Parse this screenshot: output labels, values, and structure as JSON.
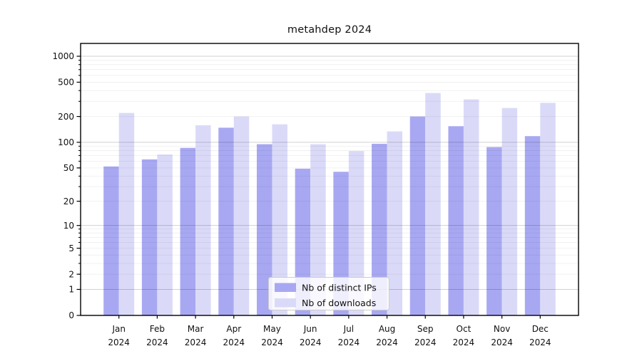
{
  "title": "metahdep 2024",
  "chart_data": {
    "type": "bar",
    "title": "metahdep 2024",
    "categories": [
      "Jan 2024",
      "Feb 2024",
      "Mar 2024",
      "Apr 2024",
      "May 2024",
      "Jun 2024",
      "Jul 2024",
      "Aug 2024",
      "Sep 2024",
      "Oct 2024",
      "Nov 2024",
      "Dec 2024"
    ],
    "series": [
      {
        "name": "Nb of distinct IPs",
        "color": "#a8a8f2",
        "values": [
          52,
          63,
          86,
          148,
          95,
          49,
          45,
          96,
          200,
          154,
          88,
          118
        ]
      },
      {
        "name": "Nb of downloads",
        "color": "#dadaf8",
        "values": [
          220,
          72,
          158,
          200,
          162,
          95,
          79,
          134,
          375,
          316,
          251,
          288
        ]
      }
    ],
    "yscale": "log10(1+x)",
    "yticks": [
      0,
      1,
      2,
      5,
      10,
      20,
      50,
      100,
      200,
      500,
      1000
    ],
    "ylim": [
      0,
      1400
    ],
    "xlabel": "",
    "ylabel": "",
    "grid": true,
    "legend_position": "lower center"
  },
  "colors": {
    "background": "#ffffff",
    "axis": "#000000",
    "text": "#111111",
    "grid_minor": "rgba(0,0,0,0.055)",
    "grid_major": "rgba(0,0,0,0.18)",
    "legend_border": "#cccccc",
    "legend_fill": "rgba(255,255,255,0.8)"
  }
}
